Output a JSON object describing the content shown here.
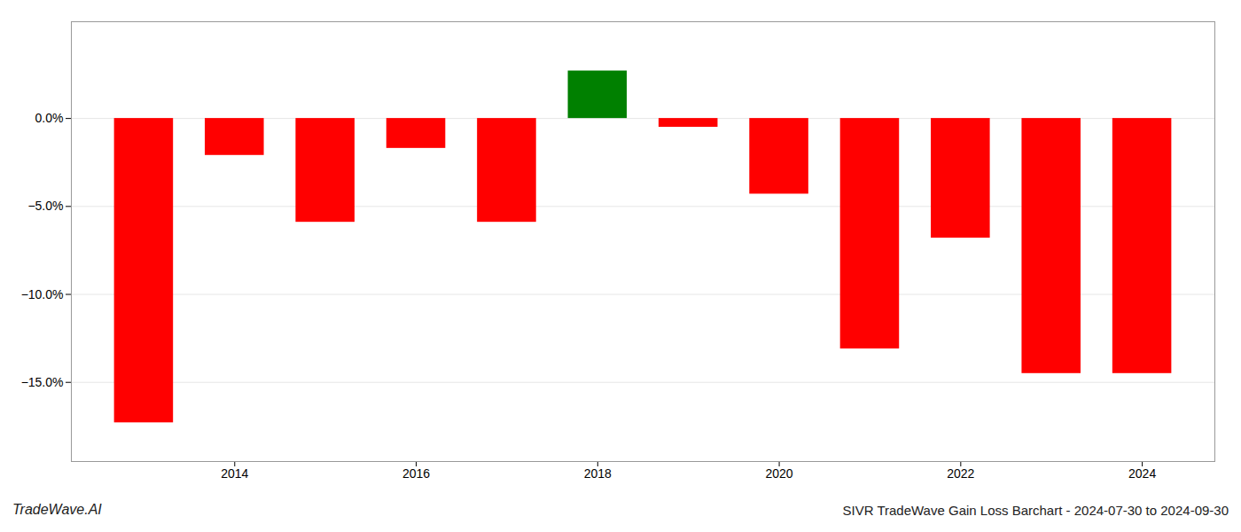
{
  "chart_data": {
    "type": "bar",
    "x": [
      2013,
      2014,
      2015,
      2016,
      2017,
      2018,
      2019,
      2020,
      2021,
      2022,
      2023,
      2024
    ],
    "values": [
      -0.173,
      -0.021,
      -0.059,
      -0.017,
      -0.059,
      0.027,
      -0.005,
      -0.043,
      -0.131,
      -0.068,
      -0.145,
      -0.145
    ],
    "colors": [
      "#ff0000",
      "#ff0000",
      "#ff0000",
      "#ff0000",
      "#ff0000",
      "#008000",
      "#ff0000",
      "#ff0000",
      "#ff0000",
      "#ff0000",
      "#ff0000",
      "#ff0000"
    ],
    "xlim": [
      2012.2,
      2024.8
    ],
    "xticks": [
      2014,
      2016,
      2018,
      2020,
      2022,
      2024
    ],
    "ylim": [
      -0.195,
      0.055
    ],
    "yticks": [
      {
        "value": -0.15,
        "label": "−15.0%"
      },
      {
        "value": -0.1,
        "label": "−10.0%"
      },
      {
        "value": -0.05,
        "label": "−5.0%"
      },
      {
        "value": 0.0,
        "label": "0.0%"
      }
    ],
    "grid": true,
    "annotations": [
      "TradeWave.AI",
      "SIVR TradeWave Gain Loss Barchart - 2024-07-30 to 2024-09-30"
    ]
  }
}
